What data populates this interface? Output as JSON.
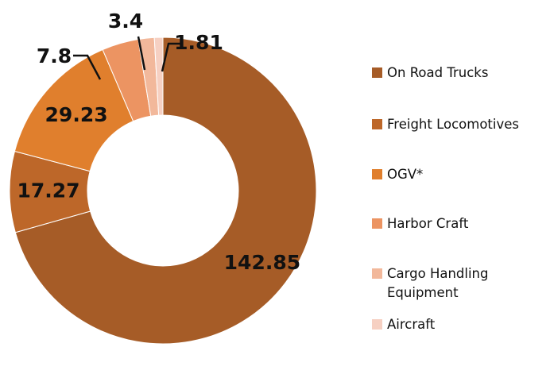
{
  "chart_data": {
    "type": "donut",
    "categories": [
      "On Road Trucks",
      "Freight Locomotives",
      "OGV*",
      "Harbor Craft",
      "Cargo Handling Equipment",
      "Aircraft"
    ],
    "values": [
      142.85,
      17.27,
      29.23,
      7.8,
      3.4,
      1.81
    ],
    "colors": [
      "#a65c27",
      "#bd6729",
      "#e07f2d",
      "#ec9462",
      "#f2b89b",
      "#f6d0c2"
    ]
  }
}
